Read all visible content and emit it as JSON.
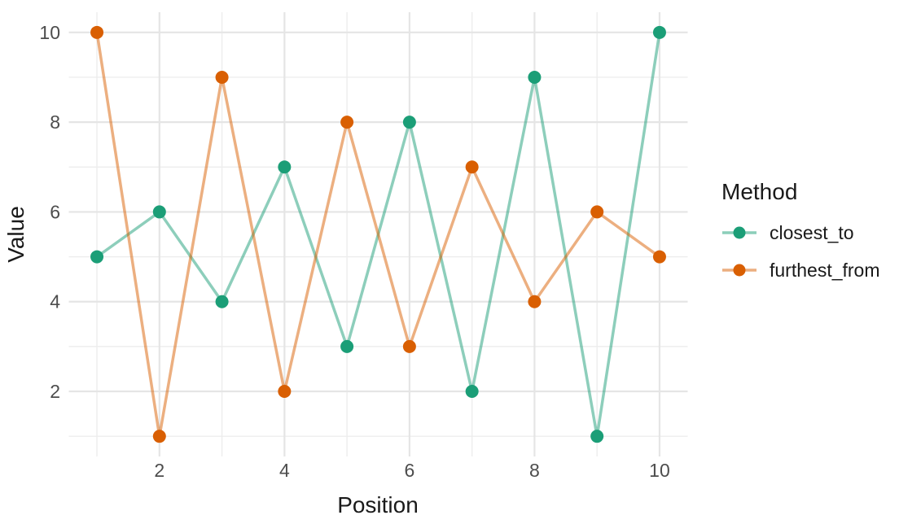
{
  "figure": {
    "background": "#ffffff"
  },
  "legend": {
    "title": "Method",
    "position": "right"
  },
  "chart_data": {
    "type": "line",
    "title": "",
    "xlabel": "Position",
    "ylabel": "Value",
    "x": [
      1,
      2,
      3,
      4,
      5,
      6,
      7,
      8,
      9,
      10
    ],
    "series": [
      {
        "name": "closest_to",
        "color": "#1B9E77",
        "values": [
          5,
          6,
          4,
          7,
          3,
          8,
          2,
          9,
          1,
          10
        ]
      },
      {
        "name": "furthest_from",
        "color": "#D95F02",
        "values": [
          10,
          1,
          9,
          2,
          8,
          3,
          7,
          4,
          6,
          5
        ]
      }
    ],
    "xlim": [
      0.55,
      10.45
    ],
    "ylim": [
      0.55,
      10.45
    ],
    "x_ticks": [
      2,
      4,
      6,
      8,
      10
    ],
    "y_ticks": [
      2,
      4,
      6,
      8,
      10
    ],
    "x_minor_ticks": [
      1,
      3,
      5,
      7,
      9
    ],
    "y_minor_ticks": [
      1,
      3,
      5,
      7,
      9
    ],
    "grid": "on",
    "legend_position": "right",
    "style": {
      "point_radius": 8,
      "line_width": 3.5,
      "line_opacity": 0.5,
      "grid_major_color": "#E5E5E5",
      "grid_minor_color": "#EDEDED",
      "grid_major_width": 2.2,
      "grid_minor_width": 1.4,
      "tick_text_color": "#4d4d4d",
      "text_color": "#1a1a1a"
    }
  }
}
